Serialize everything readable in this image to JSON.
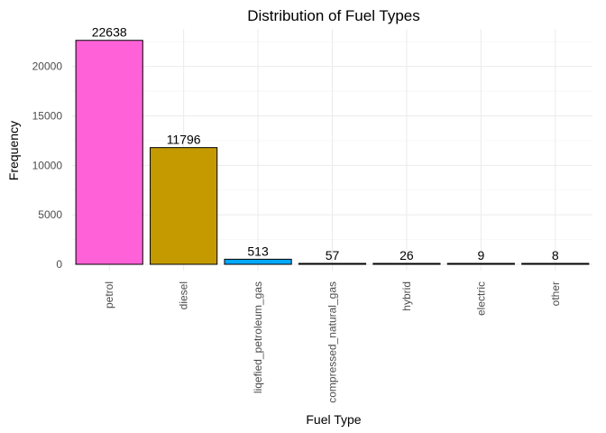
{
  "chart_data": {
    "type": "bar",
    "title": "Distribution of Fuel Types",
    "xlabel": "Fuel Type",
    "ylabel": "Frequency",
    "categories": [
      "petrol",
      "diesel",
      "liqefied_petroleum_gas",
      "compressed_natural_gas",
      "hybrid",
      "electric",
      "other"
    ],
    "values": [
      22638,
      11796,
      513,
      57,
      26,
      9,
      8
    ],
    "data_labels": [
      "22638",
      "11796",
      "513",
      "57",
      "26",
      "9",
      "8"
    ],
    "colors": [
      "#ff61d8",
      "#c49a00",
      "#00a9ff",
      "#f8766d",
      "#7cae00",
      "#00bfc4",
      "#c77cff"
    ],
    "ylim": [
      0,
      23800
    ],
    "yticks": [
      0,
      5000,
      10000,
      15000,
      20000
    ],
    "ytick_labels": [
      "0",
      "5000",
      "10000",
      "15000",
      "20000"
    ],
    "grid": true,
    "legend": "none"
  }
}
